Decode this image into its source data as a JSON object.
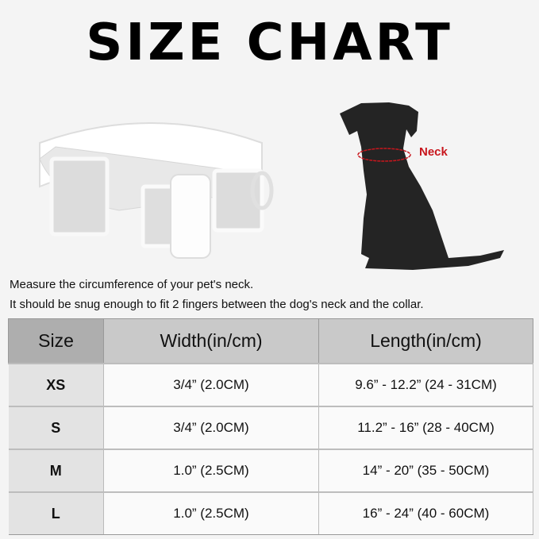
{
  "title": "SIZE CHART",
  "illustration": {
    "neck_label": "Neck",
    "accent_color": "#c8161d"
  },
  "instructions": [
    "Measure the circumference of your pet's neck.",
    "It should be snug enough to fit 2 fingers between the dog's neck and the collar."
  ],
  "table": {
    "headers": [
      "Size",
      "Width(in/cm)",
      "Length(in/cm)"
    ],
    "rows": [
      [
        "XS",
        "3/4” (2.0CM)",
        "9.6” - 12.2” (24 - 31CM)"
      ],
      [
        "S",
        "3/4” (2.0CM)",
        "11.2” - 16” (28 - 40CM)"
      ],
      [
        "M",
        "1.0” (2.5CM)",
        "14” - 20” (35 - 50CM)"
      ],
      [
        "L",
        "1.0” (2.5CM)",
        "16” - 24” (40 - 60CM)"
      ]
    ]
  }
}
